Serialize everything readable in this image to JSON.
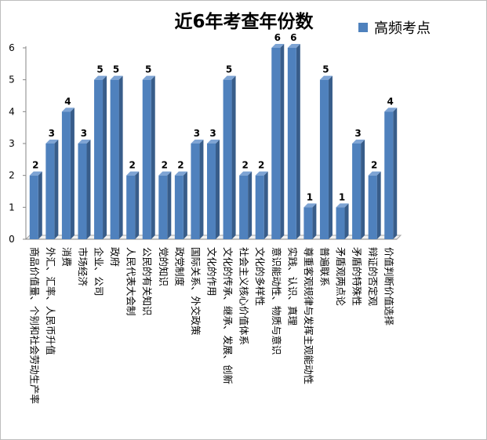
{
  "chart_data": {
    "type": "bar",
    "title": "近6年考查年份数",
    "xlabel": "",
    "ylabel": "",
    "ylim": [
      0,
      6
    ],
    "yticks": [
      0,
      1,
      2,
      3,
      4,
      5,
      6
    ],
    "grid": false,
    "legend_position": "top-right",
    "categories": [
      "商品价值量、个别和社会劳动生产率",
      "外汇、汇率、人民币升值",
      "消费",
      "市场经济",
      "企业、公司",
      "政府",
      "人民代表大会制",
      "公民的有关知识",
      "党的知识",
      "政党制度",
      "国际关系、外交政策",
      "文化的作用",
      "文化的传承、继承、发展、创新",
      "社会主义核心价值体系",
      "文化的多样性",
      "意识能动性、物质与意识",
      "实践、认识、真理",
      "尊重客观规律与发挥主观能动性",
      "普遍联系",
      "矛盾观两点论",
      "矛盾的特殊性",
      "辩证的否定观",
      "价值判断价值选择"
    ],
    "series": [
      {
        "name": "高频考点",
        "color": "#4f81bd",
        "values": [
          2,
          3,
          4,
          3,
          5,
          5,
          2,
          5,
          2,
          2,
          3,
          3,
          5,
          2,
          2,
          6,
          6,
          1,
          5,
          1,
          3,
          2,
          4
        ]
      }
    ]
  }
}
